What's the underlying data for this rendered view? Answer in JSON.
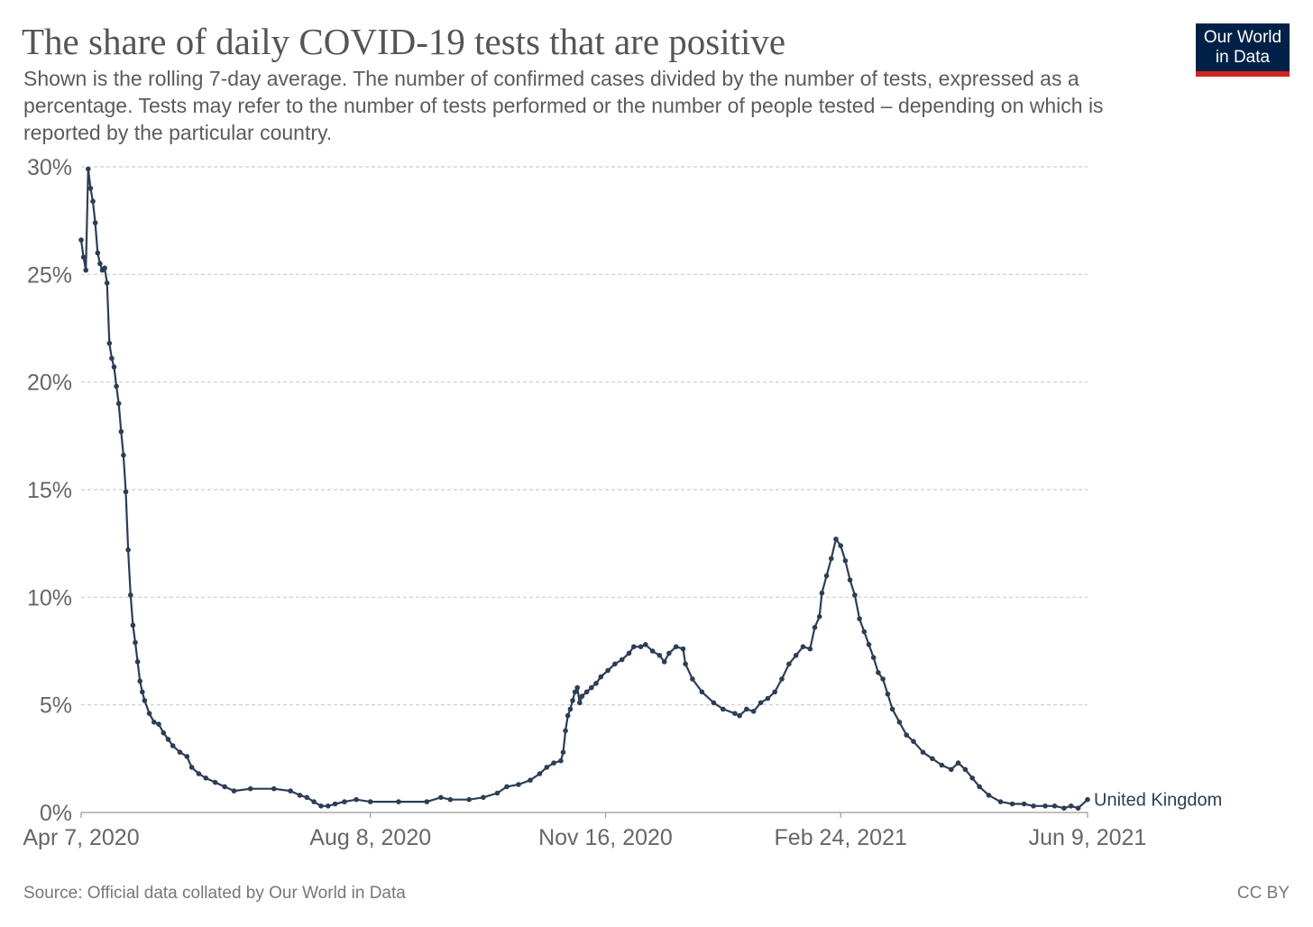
{
  "header": {
    "title": "The share of daily COVID-19 tests that are positive",
    "subtitle": "Shown is the rolling 7-day average. The number of confirmed cases divided by the number of tests, expressed as a percentage. Tests may refer to the number of tests performed or the number of people tested – depending on which is reported by the particular country.",
    "logo_line1": "Our World",
    "logo_line2": "in Data"
  },
  "footer": {
    "source": "Source: Official data collated by Our World in Data",
    "license": "CC BY"
  },
  "colors": {
    "series": "#2c3e55",
    "grid": "#cccccc",
    "logo_bg": "#002147",
    "logo_accent": "#ce261e"
  },
  "chart_data": {
    "type": "line",
    "title": "The share of daily COVID-19 tests that are positive",
    "xlabel": "",
    "ylabel": "",
    "x_range": [
      "2020-04-07",
      "2021-06-09"
    ],
    "ylim": [
      0,
      30
    ],
    "y_ticks": [
      0,
      5,
      10,
      15,
      20,
      25,
      30
    ],
    "y_tick_labels": [
      "0%",
      "5%",
      "10%",
      "15%",
      "20%",
      "25%",
      "30%"
    ],
    "x_ticks": [
      "2020-04-07",
      "2020-08-08",
      "2020-11-16",
      "2021-02-24",
      "2021-06-09"
    ],
    "x_tick_labels": [
      "Apr 7, 2020",
      "Aug 8, 2020",
      "Nov 16, 2020",
      "Feb 24, 2021",
      "Jun 9, 2021"
    ],
    "grid": "horizontal dashed",
    "legend": "end-of-line label",
    "markers": true,
    "series": [
      {
        "name": "United Kingdom",
        "points": [
          [
            "2020-04-07",
            26.6
          ],
          [
            "2020-04-08",
            25.8
          ],
          [
            "2020-04-09",
            25.2
          ],
          [
            "2020-04-10",
            29.9
          ],
          [
            "2020-04-11",
            29.0
          ],
          [
            "2020-04-12",
            28.4
          ],
          [
            "2020-04-13",
            27.4
          ],
          [
            "2020-04-14",
            26.0
          ],
          [
            "2020-04-15",
            25.5
          ],
          [
            "2020-04-16",
            25.2
          ],
          [
            "2020-04-17",
            25.3
          ],
          [
            "2020-04-18",
            24.6
          ],
          [
            "2020-04-19",
            21.8
          ],
          [
            "2020-04-20",
            21.1
          ],
          [
            "2020-04-21",
            20.7
          ],
          [
            "2020-04-22",
            19.8
          ],
          [
            "2020-04-23",
            19.0
          ],
          [
            "2020-04-24",
            17.7
          ],
          [
            "2020-04-25",
            16.6
          ],
          [
            "2020-04-26",
            14.9
          ],
          [
            "2020-04-27",
            12.2
          ],
          [
            "2020-04-28",
            10.1
          ],
          [
            "2020-04-29",
            8.7
          ],
          [
            "2020-04-30",
            7.9
          ],
          [
            "2020-05-01",
            7.0
          ],
          [
            "2020-05-02",
            6.1
          ],
          [
            "2020-05-03",
            5.6
          ],
          [
            "2020-05-04",
            5.2
          ],
          [
            "2020-05-06",
            4.6
          ],
          [
            "2020-05-08",
            4.2
          ],
          [
            "2020-05-10",
            4.1
          ],
          [
            "2020-05-12",
            3.7
          ],
          [
            "2020-05-14",
            3.4
          ],
          [
            "2020-05-16",
            3.1
          ],
          [
            "2020-05-19",
            2.8
          ],
          [
            "2020-05-22",
            2.6
          ],
          [
            "2020-05-24",
            2.1
          ],
          [
            "2020-05-27",
            1.8
          ],
          [
            "2020-05-30",
            1.6
          ],
          [
            "2020-06-03",
            1.4
          ],
          [
            "2020-06-07",
            1.2
          ],
          [
            "2020-06-11",
            1.0
          ],
          [
            "2020-06-18",
            1.1
          ],
          [
            "2020-06-28",
            1.1
          ],
          [
            "2020-07-05",
            1.0
          ],
          [
            "2020-07-09",
            0.8
          ],
          [
            "2020-07-12",
            0.7
          ],
          [
            "2020-07-15",
            0.5
          ],
          [
            "2020-07-18",
            0.3
          ],
          [
            "2020-07-21",
            0.3
          ],
          [
            "2020-07-24",
            0.4
          ],
          [
            "2020-07-28",
            0.5
          ],
          [
            "2020-08-02",
            0.6
          ],
          [
            "2020-08-08",
            0.5
          ],
          [
            "2020-08-20",
            0.5
          ],
          [
            "2020-09-01",
            0.5
          ],
          [
            "2020-09-07",
            0.7
          ],
          [
            "2020-09-11",
            0.6
          ],
          [
            "2020-09-19",
            0.6
          ],
          [
            "2020-09-25",
            0.7
          ],
          [
            "2020-10-01",
            0.9
          ],
          [
            "2020-10-05",
            1.2
          ],
          [
            "2020-10-10",
            1.3
          ],
          [
            "2020-10-15",
            1.5
          ],
          [
            "2020-10-19",
            1.8
          ],
          [
            "2020-10-22",
            2.1
          ],
          [
            "2020-10-25",
            2.3
          ],
          [
            "2020-10-28",
            2.4
          ],
          [
            "2020-10-29",
            2.8
          ],
          [
            "2020-10-30",
            3.8
          ],
          [
            "2020-10-31",
            4.5
          ],
          [
            "2020-11-01",
            4.8
          ],
          [
            "2020-11-02",
            5.2
          ],
          [
            "2020-11-03",
            5.6
          ],
          [
            "2020-11-04",
            5.8
          ],
          [
            "2020-11-05",
            5.1
          ],
          [
            "2020-11-06",
            5.4
          ],
          [
            "2020-11-08",
            5.6
          ],
          [
            "2020-11-10",
            5.8
          ],
          [
            "2020-11-12",
            6.0
          ],
          [
            "2020-11-14",
            6.3
          ],
          [
            "2020-11-17",
            6.6
          ],
          [
            "2020-11-20",
            6.9
          ],
          [
            "2020-11-23",
            7.1
          ],
          [
            "2020-11-26",
            7.4
          ],
          [
            "2020-11-28",
            7.7
          ],
          [
            "2020-12-01",
            7.7
          ],
          [
            "2020-12-03",
            7.8
          ],
          [
            "2020-12-06",
            7.5
          ],
          [
            "2020-12-09",
            7.3
          ],
          [
            "2020-12-11",
            7.0
          ],
          [
            "2020-12-13",
            7.4
          ],
          [
            "2020-12-16",
            7.7
          ],
          [
            "2020-12-19",
            7.6
          ],
          [
            "2020-12-20",
            6.9
          ],
          [
            "2020-12-23",
            6.2
          ],
          [
            "2020-12-27",
            5.6
          ],
          [
            "2021-01-01",
            5.1
          ],
          [
            "2021-01-05",
            4.8
          ],
          [
            "2021-01-10",
            4.6
          ],
          [
            "2021-01-12",
            4.5
          ],
          [
            "2021-01-15",
            4.8
          ],
          [
            "2021-01-18",
            4.7
          ],
          [
            "2021-01-21",
            5.1
          ],
          [
            "2021-01-24",
            5.3
          ],
          [
            "2021-01-27",
            5.6
          ],
          [
            "2021-01-30",
            6.2
          ],
          [
            "2021-02-02",
            6.9
          ],
          [
            "2021-02-05",
            7.3
          ],
          [
            "2021-02-08",
            7.7
          ],
          [
            "2021-02-11",
            7.6
          ],
          [
            "2021-02-13",
            8.6
          ],
          [
            "2021-02-15",
            9.1
          ],
          [
            "2021-02-16",
            10.2
          ],
          [
            "2021-02-18",
            11.0
          ],
          [
            "2021-02-20",
            11.8
          ],
          [
            "2021-02-22",
            12.7
          ],
          [
            "2021-02-24",
            12.4
          ],
          [
            "2021-02-26",
            11.7
          ],
          [
            "2021-02-28",
            10.8
          ],
          [
            "2021-03-02",
            10.1
          ],
          [
            "2021-03-04",
            9.0
          ],
          [
            "2021-03-06",
            8.4
          ],
          [
            "2021-03-08",
            7.8
          ],
          [
            "2021-03-10",
            7.2
          ],
          [
            "2021-03-12",
            6.5
          ],
          [
            "2021-03-14",
            6.2
          ],
          [
            "2021-03-16",
            5.5
          ],
          [
            "2021-03-18",
            4.8
          ],
          [
            "2021-03-21",
            4.2
          ],
          [
            "2021-03-24",
            3.6
          ],
          [
            "2021-03-27",
            3.3
          ],
          [
            "2021-03-31",
            2.8
          ],
          [
            "2021-04-04",
            2.5
          ],
          [
            "2021-04-08",
            2.2
          ],
          [
            "2021-04-12",
            2.0
          ],
          [
            "2021-04-15",
            2.3
          ],
          [
            "2021-04-18",
            2.0
          ],
          [
            "2021-04-21",
            1.6
          ],
          [
            "2021-04-24",
            1.2
          ],
          [
            "2021-04-28",
            0.8
          ],
          [
            "2021-05-03",
            0.5
          ],
          [
            "2021-05-08",
            0.4
          ],
          [
            "2021-05-13",
            0.4
          ],
          [
            "2021-05-17",
            0.3
          ],
          [
            "2021-05-22",
            0.3
          ],
          [
            "2021-05-26",
            0.3
          ],
          [
            "2021-05-30",
            0.2
          ],
          [
            "2021-06-02",
            0.3
          ],
          [
            "2021-06-05",
            0.2
          ],
          [
            "2021-06-09",
            0.6
          ]
        ]
      }
    ]
  }
}
